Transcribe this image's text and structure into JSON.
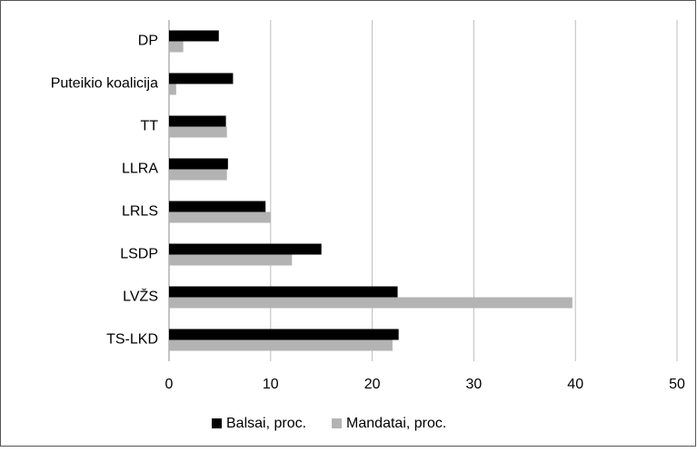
{
  "chart_data": {
    "type": "bar",
    "orientation": "horizontal",
    "categories": [
      "DP",
      "Puteikio koalicija",
      "TT",
      "LLRA",
      "LRLS",
      "LSDP",
      "LVŽS",
      "TS-LKD"
    ],
    "series": [
      {
        "name": "Balsai, proc.",
        "color": "#000000",
        "values": [
          4.9,
          6.3,
          5.6,
          5.8,
          9.5,
          15.0,
          22.5,
          22.6
        ]
      },
      {
        "name": "Mandatai, proc.",
        "color": "#b3b3b3",
        "values": [
          1.4,
          0.7,
          5.7,
          5.7,
          10.0,
          12.1,
          39.7,
          22.0
        ]
      }
    ],
    "xlim": [
      0,
      50
    ],
    "xticks": [
      0,
      10,
      20,
      30,
      40,
      50
    ],
    "grid": true,
    "legend": "bottom"
  }
}
